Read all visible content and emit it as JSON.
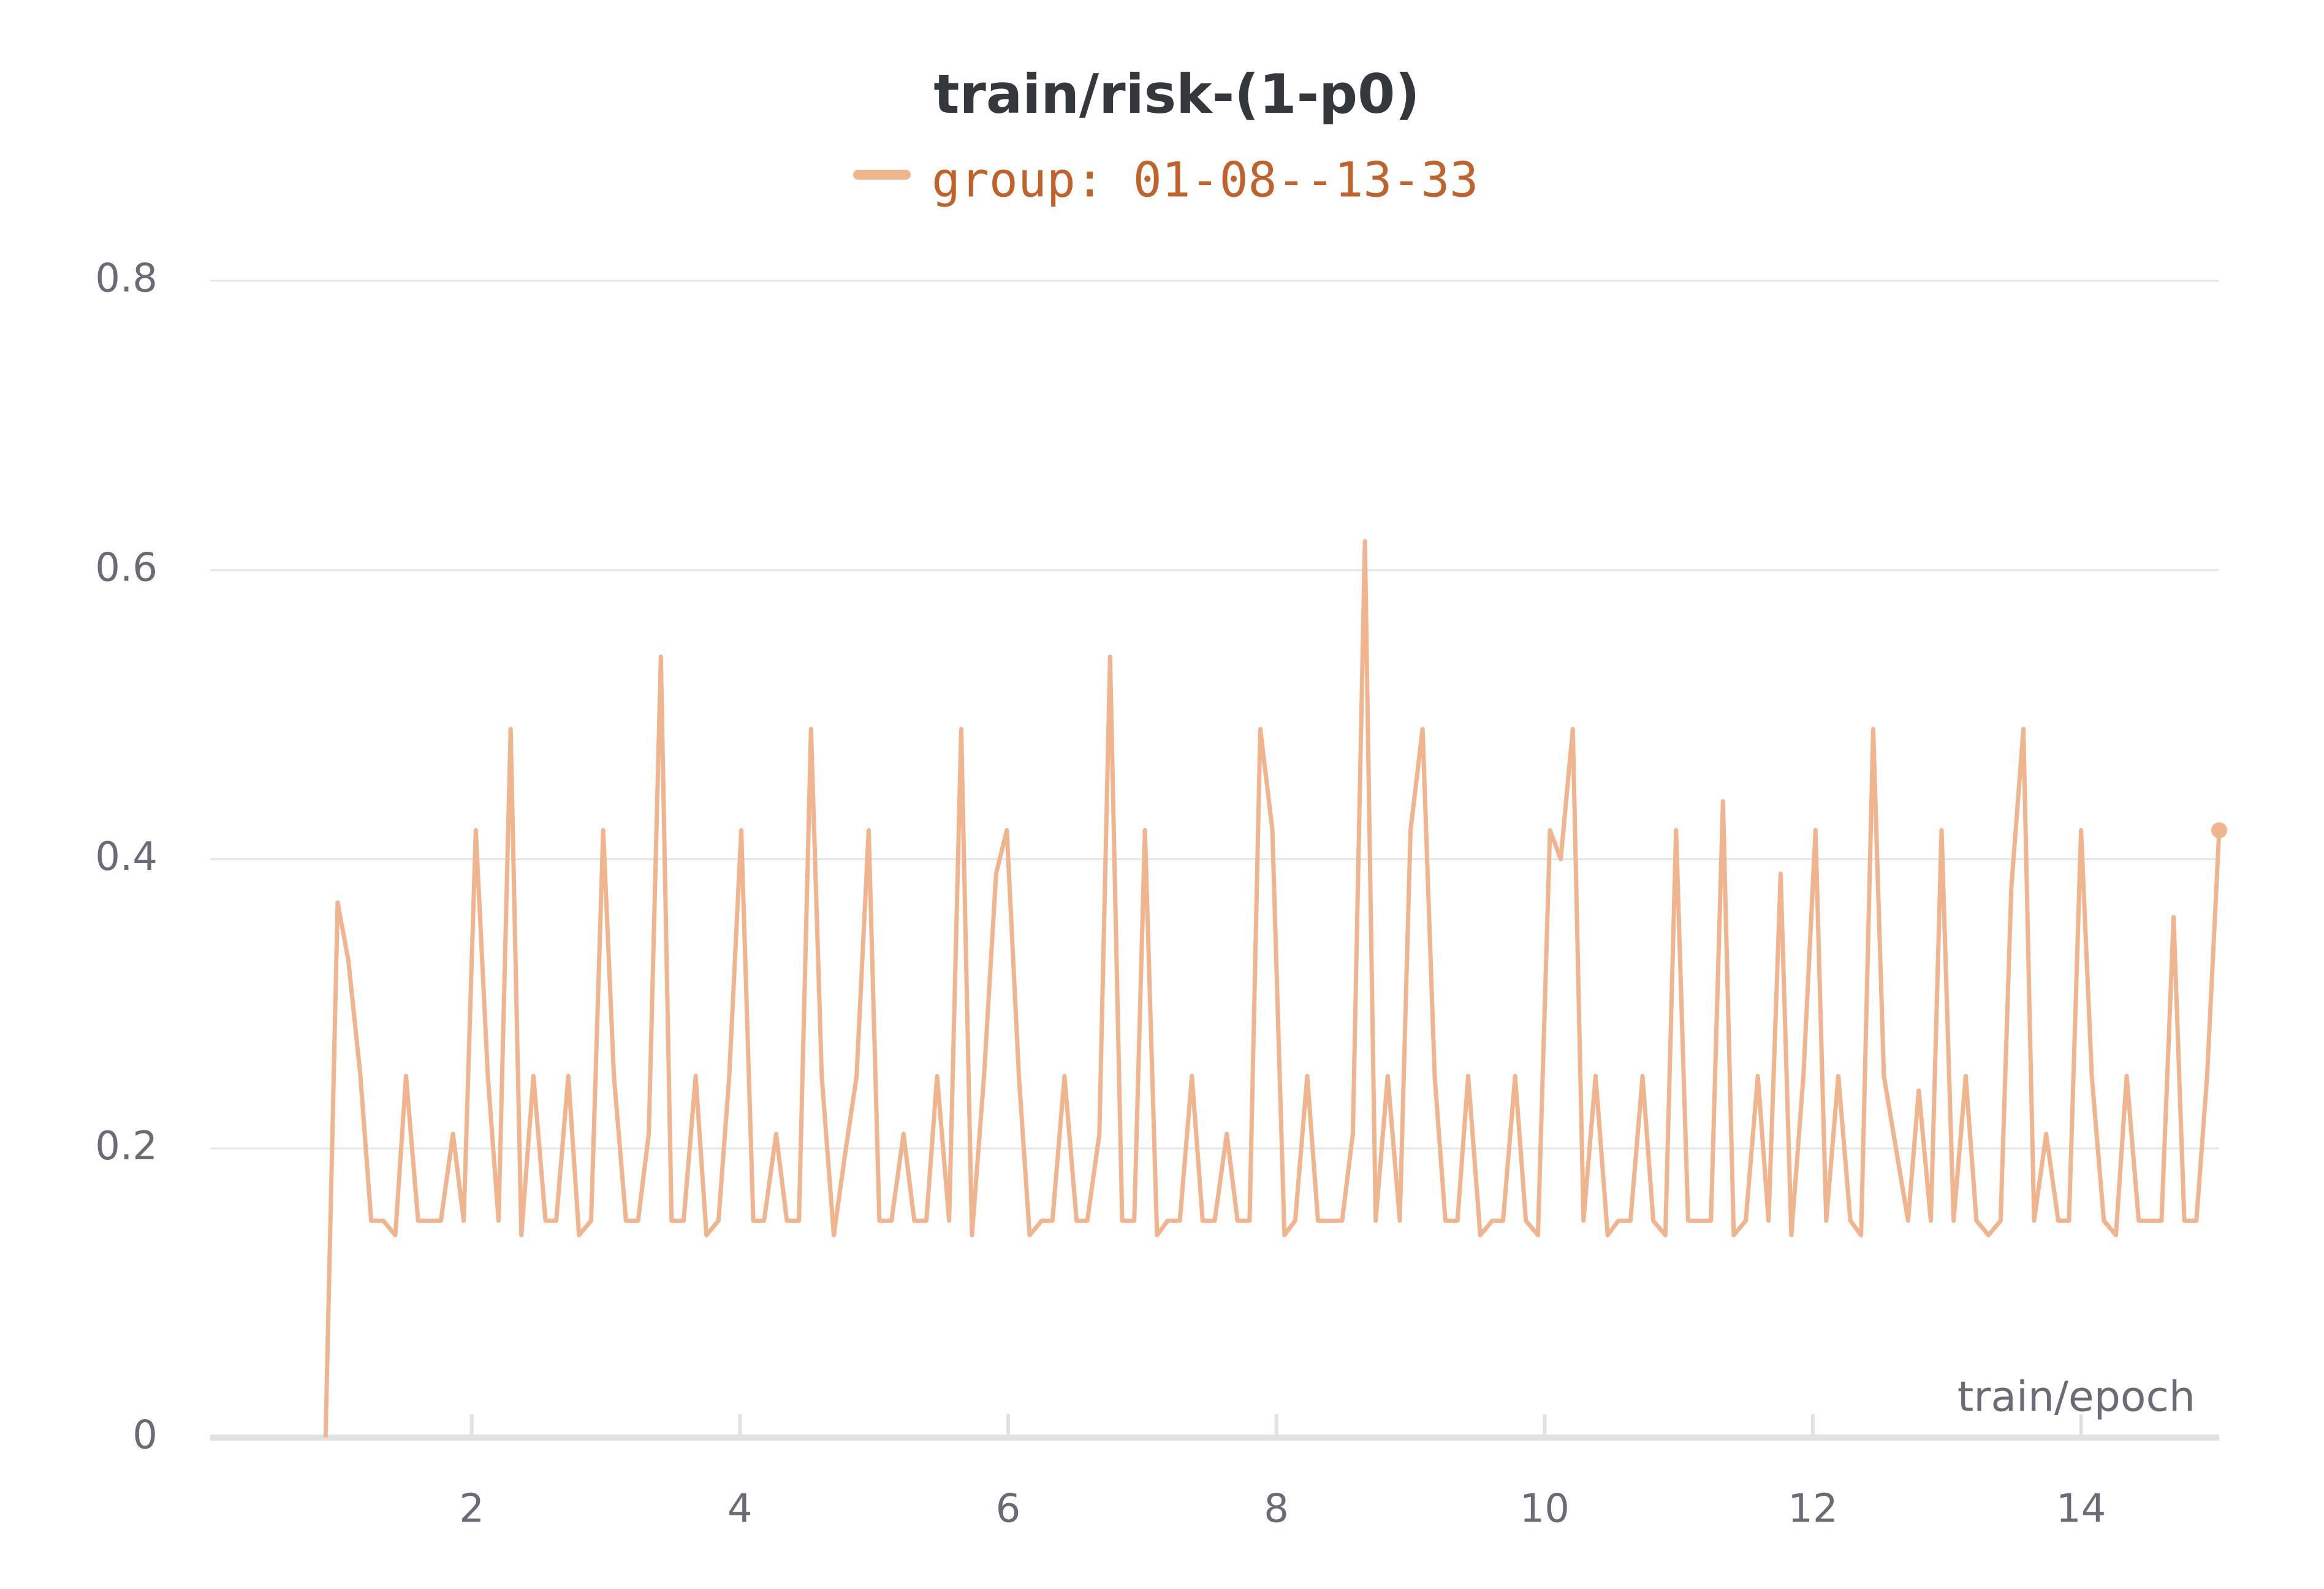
{
  "chart_data": {
    "type": "line",
    "title": "train/risk-(1-p0)",
    "x_label": "train/epoch",
    "x": [
      0.91,
      1.0,
      1.08,
      1.17,
      1.25,
      1.34,
      1.43,
      1.51,
      1.6,
      1.69,
      1.77,
      1.86,
      1.94,
      2.03,
      2.12,
      2.2,
      2.29,
      2.37,
      2.46,
      2.55,
      2.63,
      2.72,
      2.8,
      2.89,
      2.98,
      3.06,
      3.15,
      3.24,
      3.32,
      3.41,
      3.49,
      3.58,
      3.67,
      3.75,
      3.84,
      3.92,
      4.01,
      4.1,
      4.18,
      4.27,
      4.35,
      4.44,
      4.53,
      4.61,
      4.7,
      4.79,
      4.87,
      4.96,
      5.04,
      5.13,
      5.22,
      5.3,
      5.39,
      5.47,
      5.56,
      5.65,
      5.73,
      5.82,
      5.91,
      5.99,
      6.08,
      6.16,
      6.25,
      6.33,
      6.42,
      6.51,
      6.59,
      6.68,
      6.76,
      6.85,
      6.94,
      7.02,
      7.11,
      7.19,
      7.28,
      7.37,
      7.45,
      7.54,
      7.63,
      7.71,
      7.8,
      7.88,
      7.97,
      8.06,
      8.14,
      8.23,
      8.31,
      8.4,
      8.49,
      8.57,
      8.66,
      8.74,
      8.83,
      8.92,
      9.0,
      9.09,
      9.18,
      9.26,
      9.35,
      9.43,
      9.52,
      9.61,
      9.69,
      9.78,
      9.86,
      9.95,
      10.04,
      10.12,
      10.21,
      10.29,
      10.38,
      10.47,
      10.55,
      10.64,
      10.73,
      10.81,
      10.9,
      10.98,
      11.07,
      11.16,
      11.24,
      11.33,
      11.41,
      11.5,
      11.59,
      11.67,
      11.76,
      11.84,
      11.93,
      12.02,
      12.1,
      12.19,
      12.28,
      12.36,
      12.45,
      12.53,
      12.62,
      12.71,
      12.79,
      12.88,
      12.96,
      13.05,
      13.14,
      13.22,
      13.31,
      13.4,
      13.48,
      13.57,
      13.65,
      13.74,
      13.83,
      13.91,
      14.0,
      14.08,
      14.17,
      14.26,
      14.34,
      14.43,
      14.51,
      14.6,
      14.69,
      14.77,
      14.86,
      14.94,
      15.03
    ],
    "series": [
      {
        "name": "group: 01-08--13-33",
        "color": "#f0b48f",
        "legend_text_color": "#c0622a",
        "values": [
          0,
          0.37,
          0.33,
          0.25,
          0.15,
          0.15,
          0.14,
          0.25,
          0.15,
          0.15,
          0.15,
          0.21,
          0.15,
          0.42,
          0.25,
          0.15,
          0.49,
          0.14,
          0.25,
          0.15,
          0.15,
          0.25,
          0.14,
          0.15,
          0.42,
          0.25,
          0.15,
          0.15,
          0.21,
          0.54,
          0.15,
          0.15,
          0.25,
          0.14,
          0.15,
          0.25,
          0.42,
          0.15,
          0.15,
          0.21,
          0.15,
          0.15,
          0.49,
          0.25,
          0.14,
          0.2,
          0.25,
          0.42,
          0.15,
          0.15,
          0.21,
          0.15,
          0.15,
          0.25,
          0.15,
          0.49,
          0.14,
          0.25,
          0.39,
          0.42,
          0.25,
          0.14,
          0.15,
          0.15,
          0.25,
          0.15,
          0.15,
          0.21,
          0.54,
          0.15,
          0.15,
          0.42,
          0.14,
          0.15,
          0.15,
          0.25,
          0.15,
          0.15,
          0.21,
          0.15,
          0.15,
          0.49,
          0.42,
          0.14,
          0.15,
          0.25,
          0.15,
          0.15,
          0.15,
          0.21,
          0.62,
          0.15,
          0.25,
          0.15,
          0.42,
          0.49,
          0.25,
          0.15,
          0.15,
          0.25,
          0.14,
          0.15,
          0.15,
          0.25,
          0.15,
          0.14,
          0.42,
          0.4,
          0.49,
          0.15,
          0.25,
          0.14,
          0.15,
          0.15,
          0.25,
          0.15,
          0.14,
          0.42,
          0.15,
          0.15,
          0.15,
          0.44,
          0.14,
          0.15,
          0.25,
          0.15,
          0.39,
          0.14,
          0.25,
          0.42,
          0.15,
          0.25,
          0.15,
          0.14,
          0.49,
          0.25,
          0.2,
          0.15,
          0.24,
          0.15,
          0.42,
          0.15,
          0.25,
          0.15,
          0.14,
          0.15,
          0.38,
          0.49,
          0.15,
          0.21,
          0.15,
          0.15,
          0.42,
          0.25,
          0.15,
          0.14,
          0.25,
          0.15,
          0.15,
          0.15,
          0.36,
          0.15,
          0.15,
          0.25,
          0.42
        ]
      }
    ],
    "xlim": [
      0.05,
      15.03
    ],
    "ylim": [
      0,
      0.8
    ],
    "xticks": [
      2,
      4,
      6,
      8,
      10,
      12,
      14
    ],
    "yticks": [
      0,
      0.2,
      0.4,
      0.6,
      0.8
    ],
    "grid": true
  }
}
